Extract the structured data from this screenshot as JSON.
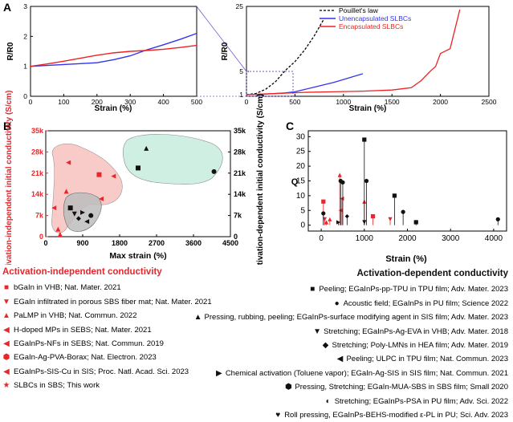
{
  "panel_labels": {
    "a": "A",
    "b": "B",
    "c": "C"
  },
  "colors": {
    "unencapsulated": "#3333ee",
    "encapsulated": "#ee2222",
    "independent": "#e8262b",
    "dependent": "#111111",
    "region_red": "#f7b9b5",
    "region_grey": "#bdbdbd",
    "region_green": "#bfe9d8"
  },
  "chart_data": [
    {
      "id": "A-left",
      "type": "line",
      "xlabel": "Strain (%)",
      "ylabel": "R/R0",
      "xlim": [
        0,
        500
      ],
      "ylim": [
        0,
        3
      ],
      "xticks": [
        "0",
        "100",
        "200",
        "300",
        "400",
        "500"
      ],
      "yticks": [
        "0",
        "1",
        "2",
        "3"
      ],
      "series": [
        {
          "name": "Unencapsulated SLBCs",
          "x": [
            0,
            50,
            100,
            150,
            200,
            250,
            300,
            350,
            400,
            450,
            500
          ],
          "y": [
            1.0,
            1.03,
            1.06,
            1.09,
            1.12,
            1.22,
            1.35,
            1.55,
            1.72,
            1.9,
            2.1
          ]
        },
        {
          "name": "Encapsulated SLBCs",
          "x": [
            0,
            50,
            100,
            150,
            200,
            250,
            300,
            350,
            400,
            450,
            500
          ],
          "y": [
            1.0,
            1.08,
            1.17,
            1.27,
            1.37,
            1.45,
            1.5,
            1.53,
            1.57,
            1.63,
            1.7
          ]
        }
      ]
    },
    {
      "id": "A-right",
      "type": "line",
      "xlabel": "Strain (%)",
      "ylabel": "R/R0",
      "xlim": [
        0,
        2500
      ],
      "ylim": [
        0,
        25
      ],
      "xticks": [
        "0",
        "500",
        "1000",
        "1500",
        "2000",
        "2500"
      ],
      "yticks": [
        "1",
        "5",
        "25"
      ],
      "series": [
        {
          "name": "Pouillet's law",
          "x": [
            0,
            100,
            200,
            300,
            400,
            500,
            600,
            700,
            800,
            900
          ],
          "y": [
            1,
            1.21,
            1.96,
            3.24,
            5.29,
            8.0,
            11.6,
            16.0,
            21.2,
            27.0
          ]
        },
        {
          "name": "Unencapsulated SLBCs",
          "x": [
            0,
            200,
            400,
            500,
            600,
            700,
            800,
            900,
            1000,
            1100,
            1200
          ],
          "y": [
            1.0,
            1.1,
            1.3,
            1.5,
            1.9,
            2.3,
            2.7,
            3.1,
            3.6,
            4.1,
            4.6
          ]
        },
        {
          "name": "Encapsulated SLBCs",
          "x": [
            0,
            300,
            600,
            900,
            1200,
            1500,
            1700,
            1800,
            1900,
            1950,
            2000,
            2100,
            2200
          ],
          "y": [
            1.0,
            1.2,
            1.4,
            1.5,
            1.6,
            1.8,
            2.2,
            3.4,
            5.2,
            6.5,
            10.5,
            12.0,
            24.0
          ]
        }
      ]
    },
    {
      "id": "B",
      "type": "scatter",
      "xlabel": "Max strain (%)",
      "ylabel": "Activation-independent initial conductivity (S/cm)",
      "ylabel_right": "Activation-dependent initial conductivity (S/cm)",
      "xlim": [
        0,
        4500
      ],
      "ylim": [
        0,
        35000
      ],
      "xticks": [
        "0",
        "900",
        "1800",
        "2700",
        "3600",
        "4500"
      ],
      "yticks": [
        "0",
        "7k",
        "14k",
        "21k",
        "28k",
        "35k"
      ],
      "series": [
        {
          "name": "Activation-independent conductivity",
          "points": [
            {
              "x": 500,
              "y": 15000,
              "sym": "triangle-up"
            },
            {
              "x": 550,
              "y": 24500,
              "sym": "triangle-left"
            },
            {
              "x": 1300,
              "y": 20500,
              "sym": "square"
            },
            {
              "x": 1350,
              "y": 12500,
              "sym": "triangle-left"
            },
            {
              "x": 1650,
              "y": 20000,
              "sym": "triangle-left"
            },
            {
              "x": 200,
              "y": 9500,
              "sym": "triangle-left"
            },
            {
              "x": 300,
              "y": 2500,
              "sym": "triangle-up"
            },
            {
              "x": 350,
              "y": 800,
              "sym": "triangle-up"
            }
          ]
        },
        {
          "name": "Activation-dependent conductivity",
          "points": [
            {
              "x": 600,
              "y": 9500,
              "sym": "square"
            },
            {
              "x": 700,
              "y": 7500,
              "sym": "triangle-down"
            },
            {
              "x": 800,
              "y": 6000,
              "sym": "diamond"
            },
            {
              "x": 900,
              "y": 8000,
              "sym": "triangle-right"
            },
            {
              "x": 1000,
              "y": 5000,
              "sym": "triangle-left"
            },
            {
              "x": 1100,
              "y": 7000,
              "sym": "circle"
            },
            {
              "x": 2250,
              "y": 22700,
              "sym": "square"
            },
            {
              "x": 2450,
              "y": 29200,
              "sym": "triangle-up"
            },
            {
              "x": 4100,
              "y": 21500,
              "sym": "circle"
            }
          ]
        }
      ]
    },
    {
      "id": "C",
      "type": "scatter",
      "xlabel": "Strain (%)",
      "ylabel": "Q",
      "xlim": [
        -300,
        4300
      ],
      "ylim": [
        -2,
        32
      ],
      "xticks": [
        "0",
        "1000",
        "2000",
        "3000",
        "4000"
      ],
      "yticks": [
        "0",
        "5",
        "10",
        "15",
        "20",
        "25",
        "30"
      ],
      "series": [
        {
          "name": "Activation-independent conductivity",
          "points": [
            {
              "x": 50,
              "y": 8,
              "sym": "square"
            },
            {
              "x": 80,
              "y": 2,
              "sym": "triangle-down"
            },
            {
              "x": 120,
              "y": 1,
              "sym": "triangle-up"
            },
            {
              "x": 200,
              "y": 2,
              "sym": "triangle-up"
            },
            {
              "x": 430,
              "y": 17,
              "sym": "triangle-up"
            },
            {
              "x": 450,
              "y": 5,
              "sym": "triangle-left"
            },
            {
              "x": 480,
              "y": 9,
              "sym": "triangle-left"
            },
            {
              "x": 1000,
              "y": 8,
              "sym": "triangle-up"
            },
            {
              "x": 1200,
              "y": 3,
              "sym": "square"
            },
            {
              "x": 1600,
              "y": 2,
              "sym": "triangle-down"
            },
            {
              "x": 2200,
              "y": 1,
              "sym": "star"
            }
          ]
        },
        {
          "name": "Activation-dependent conductivity",
          "points": [
            {
              "x": 50,
              "y": 4,
              "sym": "circle"
            },
            {
              "x": 400,
              "y": 1,
              "sym": "triangle-right"
            },
            {
              "x": 450,
              "y": 15,
              "sym": "circle"
            },
            {
              "x": 500,
              "y": 14.5,
              "sym": "circle"
            },
            {
              "x": 600,
              "y": 3,
              "sym": "diamond"
            },
            {
              "x": 1000,
              "y": 29,
              "sym": "square"
            },
            {
              "x": 1000,
              "y": 1,
              "sym": "triangle-down"
            },
            {
              "x": 1050,
              "y": 15,
              "sym": "circle"
            },
            {
              "x": 1700,
              "y": 10,
              "sym": "square"
            },
            {
              "x": 1900,
              "y": 4.5,
              "sym": "circle"
            },
            {
              "x": 2200,
              "y": 1,
              "sym": "square"
            },
            {
              "x": 4100,
              "y": 2,
              "sym": "circle"
            }
          ]
        }
      ]
    }
  ],
  "legend_left": {
    "header": "Activation-independent conductivity",
    "items": [
      {
        "sym": "■",
        "text": "bGaIn in VHB; Nat. Mater. 2021"
      },
      {
        "sym": "▼",
        "text": "EGaIn infiltrated in porous SBS fiber mat; Nat. Mater. 2021"
      },
      {
        "sym": "▲",
        "text": "PaLMP in VHB; Nat. Commun. 2022"
      },
      {
        "sym": "◀",
        "text": "H-doped MPs in SEBS; Nat. Mater. 2021"
      },
      {
        "sym": "◀",
        "text": "EGaInPs-NFs in SEBS; Nat. Commun. 2019"
      },
      {
        "sym": "⬢",
        "text": "EGaIn-Ag-PVA-Borax; Nat. Electron. 2023"
      },
      {
        "sym": "◀",
        "text": "EGaInPs-SIS-Cu in SIS; Proc. Natl. Acad. Sci. 2023"
      },
      {
        "sym": "★",
        "text": "SLBCs in SBS; This work"
      }
    ]
  },
  "legend_right": {
    "header": "Activation-dependent conductivity",
    "items": [
      {
        "sym": "■",
        "text": "Peeling; EGaInPs-pp-TPU in TPU film; Adv. Mater. 2023"
      },
      {
        "sym": "●",
        "text": "Acoustic field; EGaInPs in PU film; Science 2022"
      },
      {
        "sym": "▲",
        "text": "Pressing, rubbing, peeling; EGaInPs-surface modifying agent in SIS film; Adv. Mater. 2023"
      },
      {
        "sym": "▼",
        "text": "Stretching; EGaInPs-Ag-EVA in VHB; Adv. Mater. 2018"
      },
      {
        "sym": "◆",
        "text": "Stretching; Poly-LMNs in HEA film; Adv. Mater. 2019"
      },
      {
        "sym": "◀",
        "text": "Peeling; ULPC in TPU film; Nat. Commun. 2023"
      },
      {
        "sym": "▶",
        "text": "Chemical activation (Toluene vapor); EGaIn-Ag-SIS in SIS film; Nat. Commun. 2021"
      },
      {
        "sym": "⬢",
        "text": "Pressing, Stretching; EGaIn-MUA-SBS in SBS film; Small 2020"
      },
      {
        "sym": "◐",
        "text": "Stretching; EGaInPs-PSA in PU film; Adv. Sci. 2022"
      },
      {
        "sym": "♥",
        "text": "Roll pressing, EGaInPs-BEHS-modified ε-PL in PU; Sci. Adv. 2023"
      }
    ]
  }
}
